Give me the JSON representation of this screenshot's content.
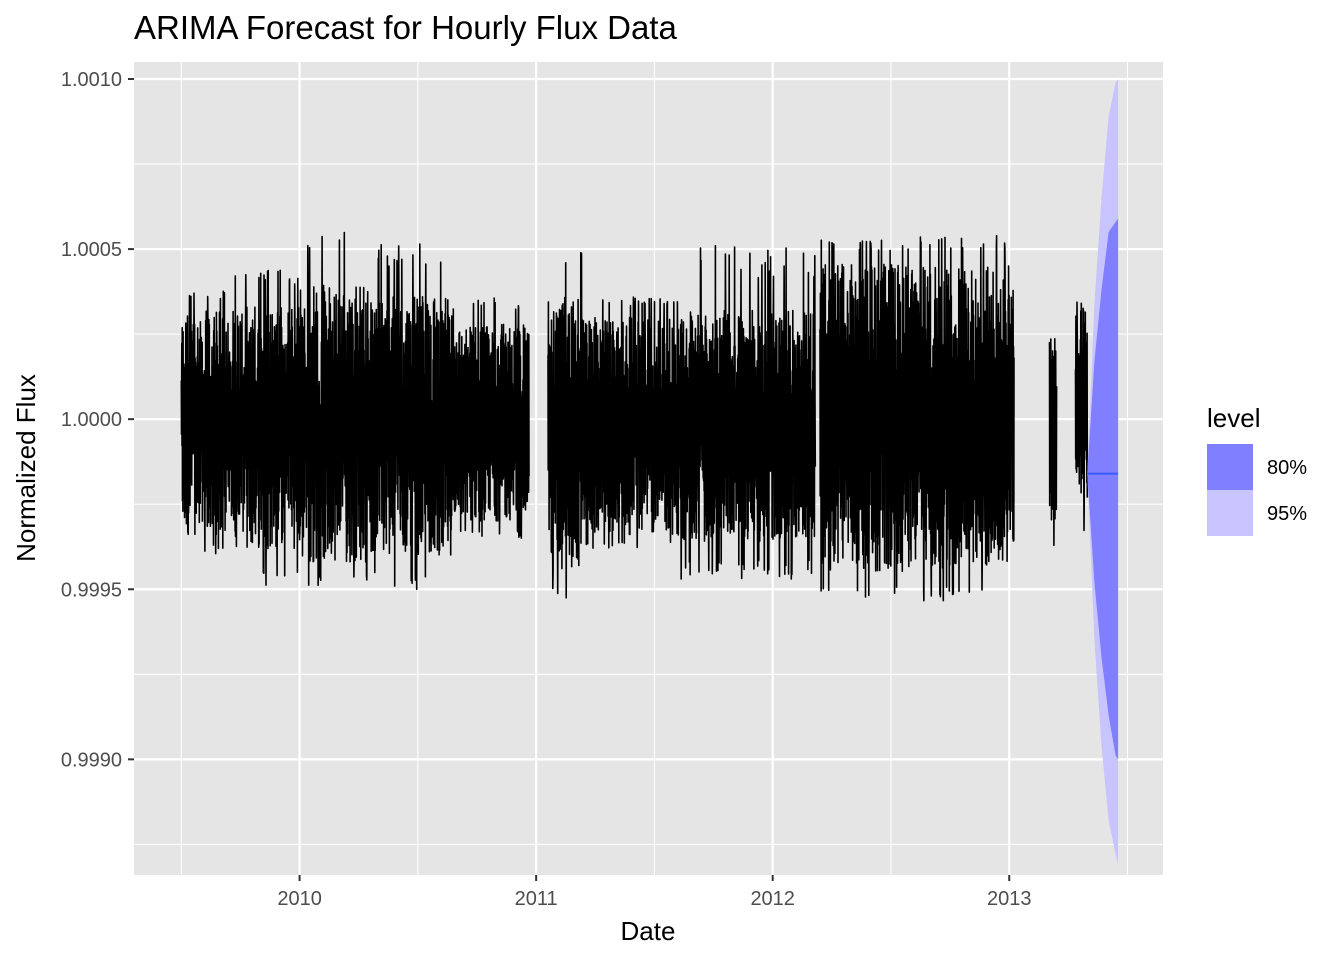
{
  "chart_data": {
    "type": "line",
    "title": "ARIMA Forecast for Hourly Flux Data",
    "xlabel": "Date",
    "ylabel": "Normalized Flux",
    "xlim": [
      2009.3,
      2013.65
    ],
    "ylim": [
      0.99866,
      1.00105
    ],
    "x_ticks": [
      {
        "value": 2010,
        "label": "2010"
      },
      {
        "value": 2011,
        "label": "2011"
      },
      {
        "value": 2012,
        "label": "2012"
      },
      {
        "value": 2013,
        "label": "2013"
      }
    ],
    "y_ticks": [
      {
        "value": 1.001,
        "label": "1.0010"
      },
      {
        "value": 1.0005,
        "label": "1.0005"
      },
      {
        "value": 1.0,
        "label": "1.0000"
      },
      {
        "value": 0.9995,
        "label": "0.9995"
      },
      {
        "value": 0.999,
        "label": "0.9990"
      }
    ],
    "grid": true,
    "legend": {
      "title": "level",
      "placement": "right",
      "entries": [
        {
          "label": "80%",
          "color": "#7f7fff"
        },
        {
          "label": "95%",
          "color": "#c8c4ff"
        }
      ]
    },
    "colors": {
      "panel": "#e5e5e5",
      "grid": "#ffffff",
      "observed": "#000000",
      "forecast_mean": "#3b5bff",
      "pi80": "#7f7fff",
      "pi95": "#c8c4ff"
    },
    "observed_segments": [
      {
        "x_start": 2009.5,
        "x_end": 2009.7,
        "lower": 0.99966,
        "upper": 1.00032,
        "peak_low": 0.9996,
        "peak_high": 1.00038
      },
      {
        "x_start": 2009.7,
        "x_end": 2010.0,
        "lower": 0.99962,
        "upper": 1.00034,
        "peak_low": 0.99949,
        "peak_high": 1.00044
      },
      {
        "x_start": 2010.0,
        "x_end": 2010.3,
        "lower": 0.99958,
        "upper": 1.0004,
        "peak_low": 0.99951,
        "peak_high": 1.00055
      },
      {
        "x_start": 2010.3,
        "x_end": 2010.65,
        "lower": 0.9996,
        "upper": 1.00036,
        "peak_low": 0.9995,
        "peak_high": 1.00052
      },
      {
        "x_start": 2010.65,
        "x_end": 2010.97,
        "lower": 0.9997,
        "upper": 1.00028,
        "peak_low": 0.99965,
        "peak_high": 1.00036
      },
      {
        "x_start": 2011.05,
        "x_end": 2011.2,
        "lower": 0.99955,
        "upper": 1.00036,
        "peak_low": 0.99946,
        "peak_high": 1.00051
      },
      {
        "x_start": 2011.2,
        "x_end": 2011.6,
        "lower": 0.99966,
        "upper": 1.0003,
        "peak_low": 0.99962,
        "peak_high": 1.00036
      },
      {
        "x_start": 2011.6,
        "x_end": 2012.18,
        "lower": 0.99964,
        "upper": 1.00032,
        "peak_low": 0.99953,
        "peak_high": 1.00051
      },
      {
        "x_start": 2012.2,
        "x_end": 2012.55,
        "lower": 0.99955,
        "upper": 1.00046,
        "peak_low": 0.99947,
        "peak_high": 1.00053
      },
      {
        "x_start": 2012.55,
        "x_end": 2013.02,
        "lower": 0.99956,
        "upper": 1.00045,
        "peak_low": 0.99946,
        "peak_high": 1.00054
      },
      {
        "x_start": 2013.17,
        "x_end": 2013.2,
        "lower": 0.9997,
        "upper": 1.00025,
        "peak_low": 0.99962,
        "peak_high": 1.0003
      },
      {
        "x_start": 2013.28,
        "x_end": 2013.33,
        "lower": 0.99973,
        "upper": 1.00033,
        "peak_low": 0.99962,
        "peak_high": 1.00035
      }
    ],
    "forecast": {
      "x": [
        2013.33,
        2013.36,
        2013.39,
        2013.42,
        2013.45,
        2013.46
      ],
      "mean": [
        0.99984,
        0.99984,
        0.99984,
        0.99984,
        0.99984,
        0.99984
      ],
      "lo80": [
        0.99984,
        0.99952,
        0.9993,
        0.99913,
        0.99901,
        0.999
      ],
      "hi80": [
        0.99984,
        1.00017,
        1.00038,
        1.00055,
        1.00058,
        1.00059
      ],
      "lo95": [
        0.99984,
        0.99935,
        0.99904,
        0.99882,
        0.99872,
        0.99869
      ],
      "hi95": [
        0.99984,
        1.00034,
        1.00065,
        1.00089,
        1.00099,
        1.001
      ]
    }
  }
}
